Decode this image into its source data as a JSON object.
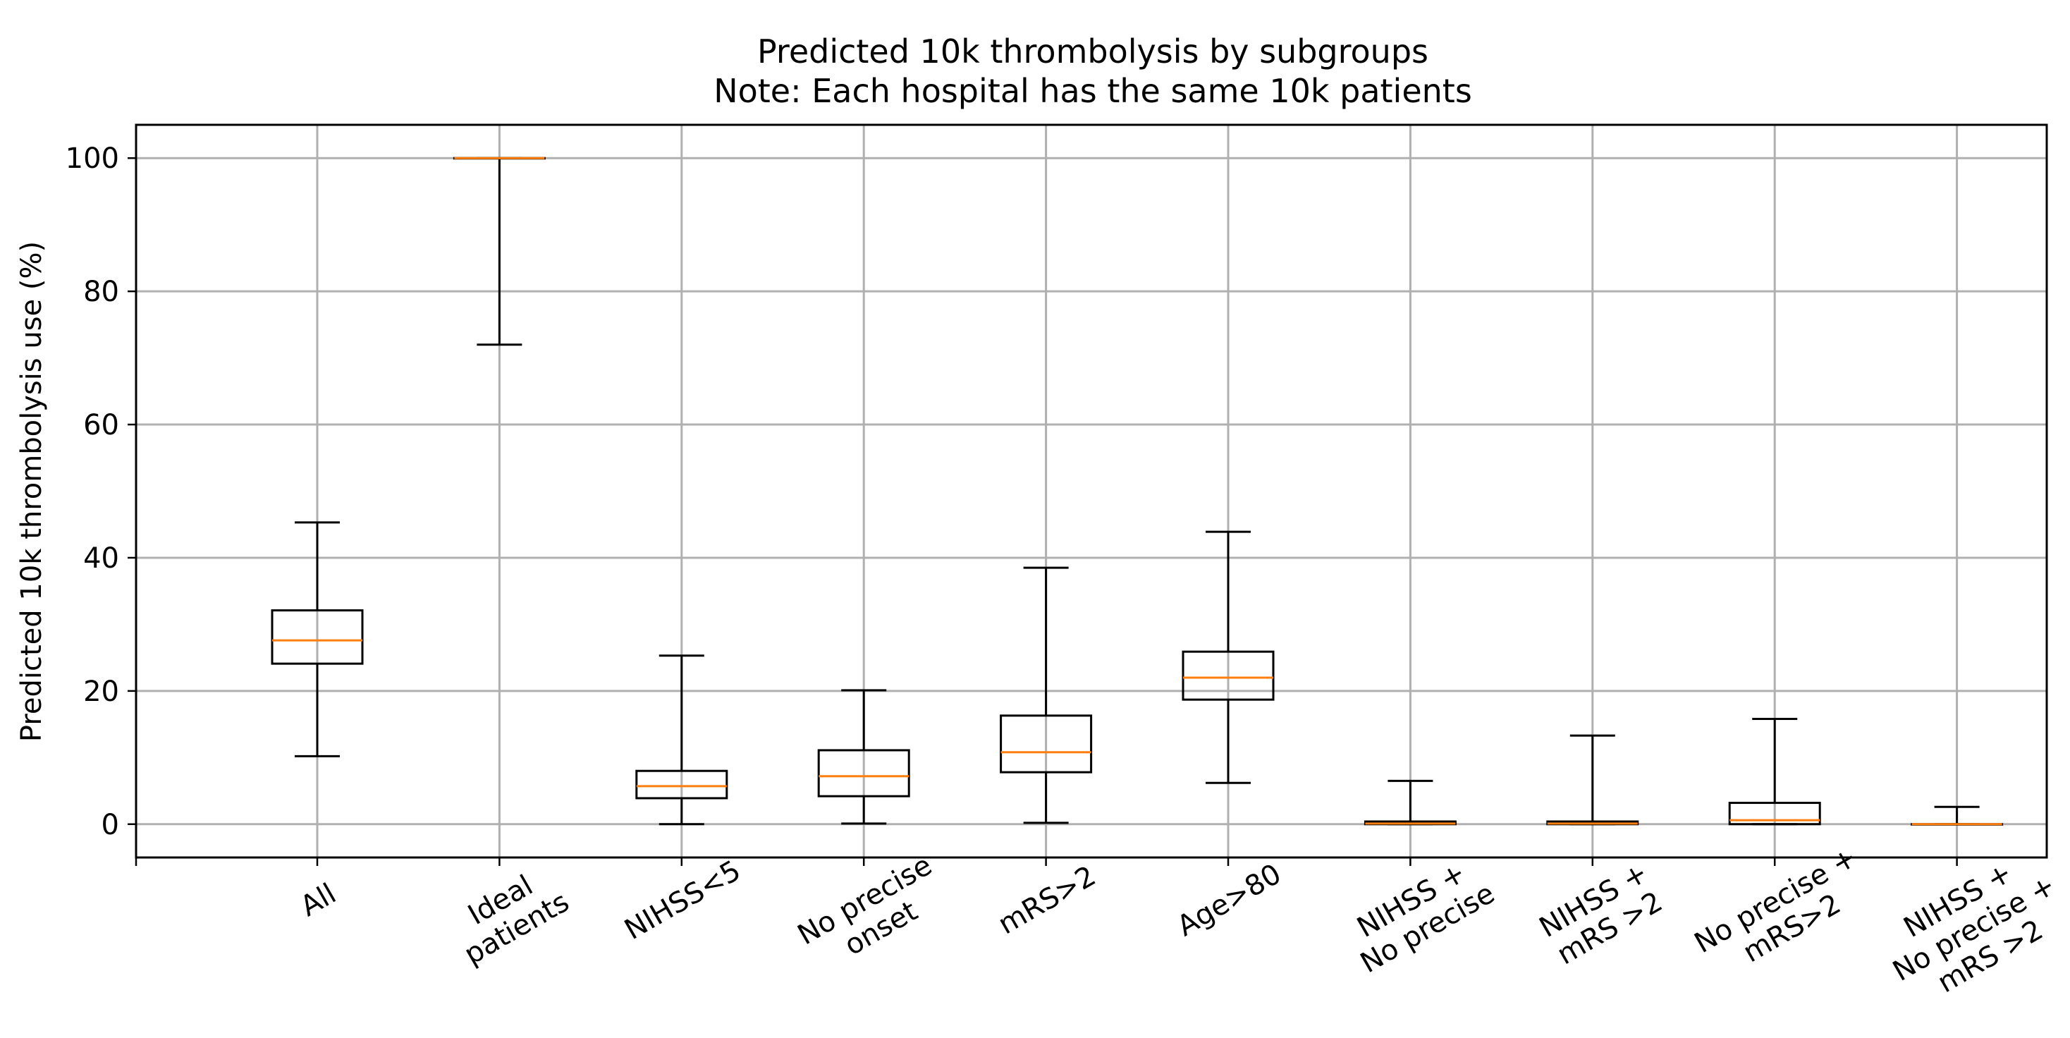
{
  "chart_data": {
    "type": "box",
    "title": "Predicted 10k thrombolysis by subgroups",
    "subtitle": "Note: Each hospital has the same 10k patients",
    "xlabel": "",
    "ylabel": "Predicted 10k thrombolysis use (%)",
    "ylim": [
      -5,
      105
    ],
    "yticks": [
      0,
      20,
      40,
      60,
      80,
      100
    ],
    "grid": true,
    "categories": [
      [
        "All"
      ],
      [
        "Ideal",
        "patients"
      ],
      [
        "NIHSS<5"
      ],
      [
        "No precise",
        "onset"
      ],
      [
        "mRS>2"
      ],
      [
        "Age>80"
      ],
      [
        "NIHSS +",
        "No precise"
      ],
      [
        "NIHSS +",
        "mRS >2"
      ],
      [
        "No precise +",
        "mRS>2"
      ],
      [
        "NIHSS +",
        "No precise +",
        "mRS >2"
      ]
    ],
    "boxes": [
      {
        "whisker_low": 10.2,
        "q1": 24.1,
        "median": 27.6,
        "q3": 32.1,
        "whisker_high": 45.3
      },
      {
        "whisker_low": 72.0,
        "q1": 100.0,
        "median": 100.0,
        "q3": 100.0,
        "whisker_high": 100.0
      },
      {
        "whisker_low": 0.0,
        "q1": 3.9,
        "median": 5.7,
        "q3": 8.0,
        "whisker_high": 25.3
      },
      {
        "whisker_low": 0.1,
        "q1": 4.2,
        "median": 7.2,
        "q3": 11.1,
        "whisker_high": 20.1
      },
      {
        "whisker_low": 0.2,
        "q1": 7.8,
        "median": 10.8,
        "q3": 16.3,
        "whisker_high": 38.5
      },
      {
        "whisker_low": 6.2,
        "q1": 18.7,
        "median": 22.0,
        "q3": 25.9,
        "whisker_high": 43.9
      },
      {
        "whisker_low": 0.0,
        "q1": 0.0,
        "median": 0.1,
        "q3": 0.4,
        "whisker_high": 6.5
      },
      {
        "whisker_low": 0.0,
        "q1": 0.0,
        "median": 0.1,
        "q3": 0.4,
        "whisker_high": 13.3
      },
      {
        "whisker_low": 0.0,
        "q1": 0.0,
        "median": 0.6,
        "q3": 3.2,
        "whisker_high": 15.8
      },
      {
        "whisker_low": 0.0,
        "q1": 0.0,
        "median": 0.0,
        "q3": 0.0,
        "whisker_high": 2.6
      }
    ],
    "colors": {
      "box": "#000000",
      "median": "#ff7f0e",
      "grid": "#b0b0b0"
    }
  }
}
